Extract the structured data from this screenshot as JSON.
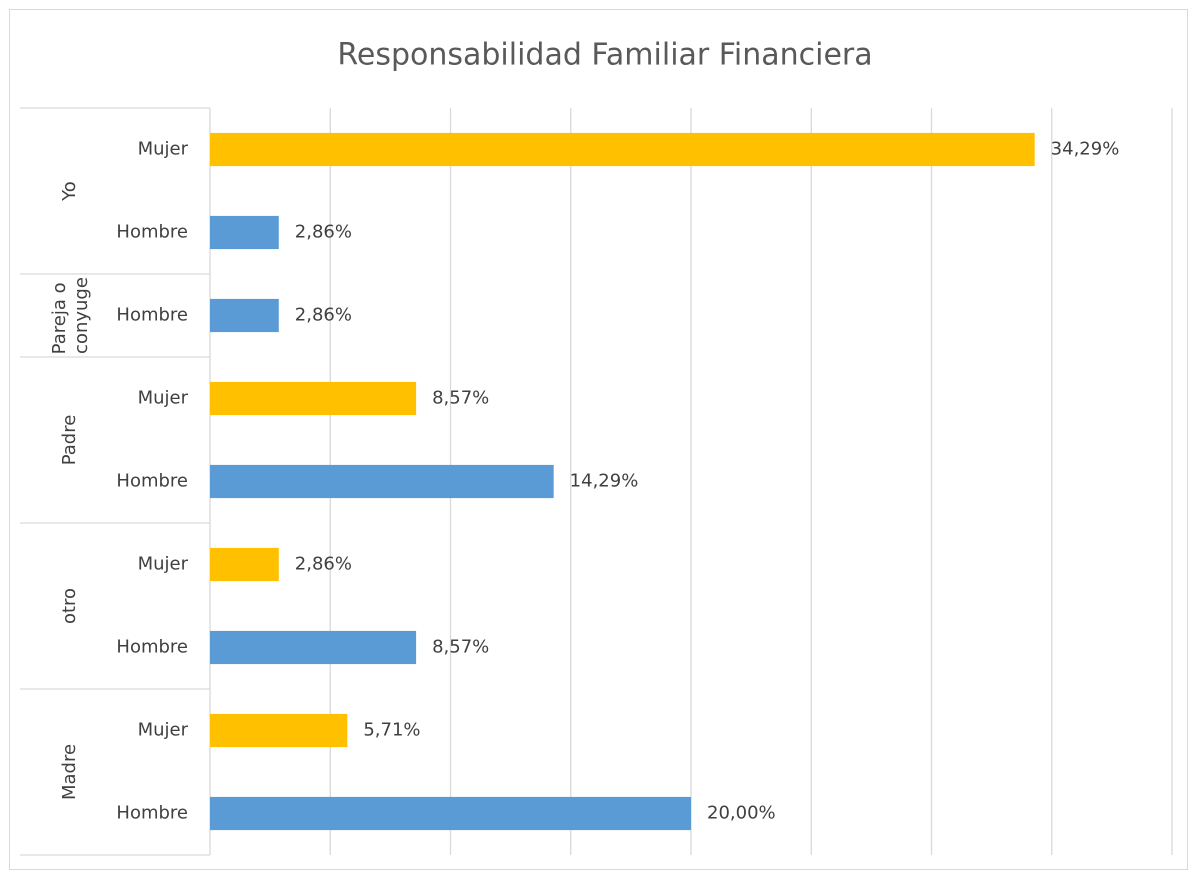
{
  "chart_data": {
    "type": "bar",
    "orientation": "horizontal",
    "title": "Responsabilidad Familiar Financiera",
    "groups": [
      {
        "name": "Yo",
        "categories": [
          "Mujer",
          "Hombre"
        ],
        "values": [
          34.29,
          2.86
        ],
        "value_labels": [
          "34,29%",
          "2,86%"
        ]
      },
      {
        "name": "Pareja o conyuge",
        "categories": [
          "Hombre"
        ],
        "values": [
          2.86
        ],
        "value_labels": [
          "2,86%"
        ]
      },
      {
        "name": "Padre",
        "categories": [
          "Mujer",
          "Hombre"
        ],
        "values": [
          8.57,
          14.29
        ],
        "value_labels": [
          "8,57%",
          "14,29%"
        ]
      },
      {
        "name": "otro",
        "categories": [
          "Mujer",
          "Hombre"
        ],
        "values": [
          2.86,
          8.57
        ],
        "value_labels": [
          "2,86%",
          "8,57%"
        ]
      },
      {
        "name": "Madre",
        "categories": [
          "Mujer",
          "Hombre"
        ],
        "values": [
          5.71,
          20.0
        ],
        "value_labels": [
          "5,71%",
          "20,00%"
        ]
      }
    ],
    "colors": {
      "Mujer": "#ffc000",
      "Hombre": "#5b9bd5"
    },
    "xlim": [
      0,
      40
    ],
    "xticks": [
      0,
      5,
      10,
      15,
      20,
      25,
      30,
      35,
      40
    ],
    "grid": true
  }
}
